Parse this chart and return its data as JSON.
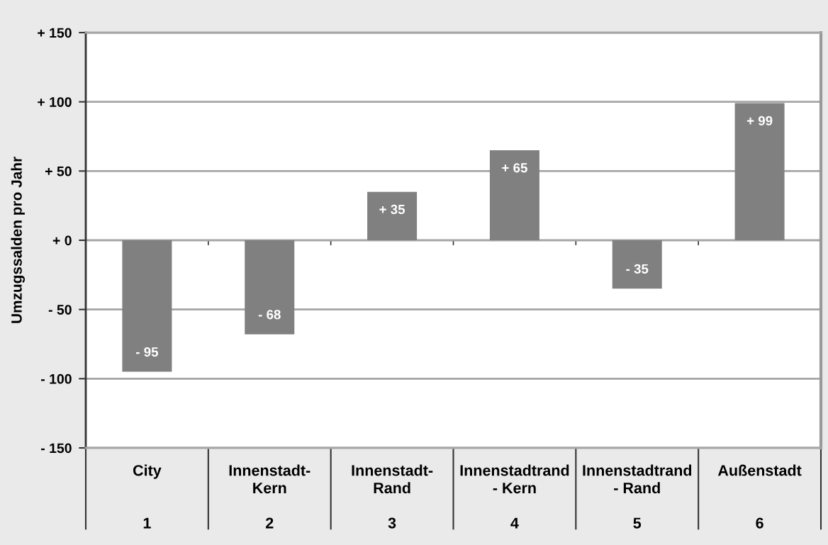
{
  "chart_data": {
    "type": "bar",
    "ylabel": "Umzugssalden pro Jahr",
    "categories": [
      "City\n\n\n1",
      "Innenstadt-\nKern\n\n2",
      "Innenstadt-\nRand\n\n3",
      "Innenstadtrand\n- Kern\n\n4",
      "Innenstadtrand\n- Rand\n\n5",
      "Außenstadt\n\n\n6"
    ],
    "values": [
      -95,
      -68,
      35,
      65,
      -35,
      99
    ],
    "value_labels": [
      "- 95",
      "- 68",
      "+ 35",
      "+ 65",
      "- 35",
      "+ 99"
    ],
    "color": "#808080",
    "ylim": [
      -150,
      150
    ],
    "yticks": [
      {
        "value": -150,
        "label": "- 150"
      },
      {
        "value": -100,
        "label": "- 100"
      },
      {
        "value": -50,
        "label": "- 50"
      },
      {
        "value": 0,
        "label": "+ 0"
      },
      {
        "value": 50,
        "label": "+ 50"
      },
      {
        "value": 100,
        "label": "+ 100"
      },
      {
        "value": 150,
        "label": "+ 150"
      }
    ],
    "grid": "y"
  }
}
